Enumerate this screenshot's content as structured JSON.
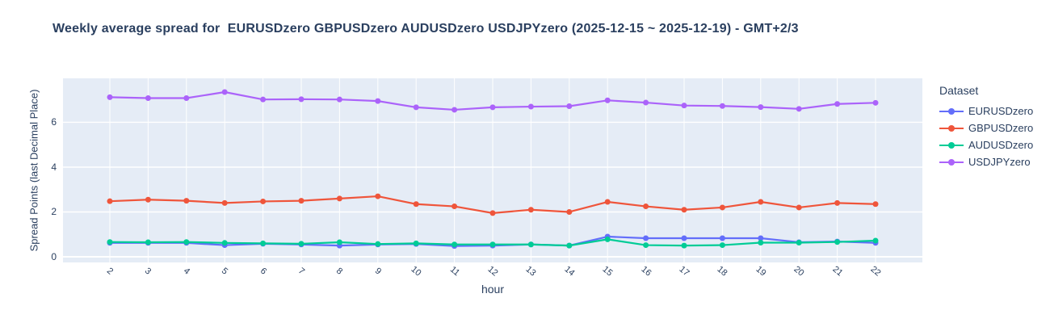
{
  "title": "Weekly average spread for  EURUSDzero GBPUSDzero AUDUSDzero USDJPYzero (2025-12-15 ~ 2025-12-19) - GMT+2/3",
  "legend": {
    "title": "Dataset"
  },
  "colors": {
    "plot_background": "#e5ecf6",
    "grid": "#ffffff",
    "text": "#2a3f5f"
  },
  "chart_data": {
    "type": "line",
    "title": "Weekly average spread for  EURUSDzero GBPUSDzero AUDUSDzero USDJPYzero (2025-12-15 ~ 2025-12-19) - GMT+2/3",
    "xlabel": "hour",
    "ylabel": "Spread Points (last Decimal Place)",
    "x": [
      2,
      3,
      4,
      5,
      6,
      7,
      8,
      9,
      10,
      11,
      12,
      13,
      14,
      15,
      16,
      17,
      18,
      19,
      20,
      21,
      22
    ],
    "y_ticks": [
      0,
      2,
      4,
      6
    ],
    "ylim": [
      -0.252,
      7.963
    ],
    "grid": true,
    "legend_position": "right",
    "series": [
      {
        "name": "EURUSDzero",
        "color": "#636efa",
        "values": [
          0.62,
          0.62,
          0.62,
          0.52,
          0.58,
          0.55,
          0.5,
          0.55,
          0.57,
          0.48,
          0.5,
          0.55,
          0.5,
          0.9,
          0.83,
          0.83,
          0.83,
          0.83,
          0.65,
          0.68,
          0.62
        ]
      },
      {
        "name": "GBPUSDzero",
        "color": "#ef553b",
        "values": [
          2.48,
          2.55,
          2.5,
          2.4,
          2.47,
          2.5,
          2.6,
          2.7,
          2.35,
          2.25,
          1.95,
          2.1,
          2.0,
          2.45,
          2.25,
          2.1,
          2.2,
          2.45,
          2.2,
          2.4,
          2.35
        ]
      },
      {
        "name": "AUDUSDzero",
        "color": "#00cc96",
        "values": [
          0.66,
          0.65,
          0.66,
          0.62,
          0.6,
          0.58,
          0.65,
          0.57,
          0.6,
          0.55,
          0.55,
          0.55,
          0.5,
          0.78,
          0.52,
          0.5,
          0.52,
          0.63,
          0.63,
          0.66,
          0.72
        ]
      },
      {
        "name": "USDJPYzero",
        "color": "#ab63fa",
        "values": [
          7.12,
          7.08,
          7.08,
          7.35,
          7.02,
          7.03,
          7.02,
          6.95,
          6.67,
          6.56,
          6.67,
          6.7,
          6.72,
          6.98,
          6.88,
          6.75,
          6.73,
          6.68,
          6.6,
          6.82,
          6.87
        ]
      }
    ]
  }
}
